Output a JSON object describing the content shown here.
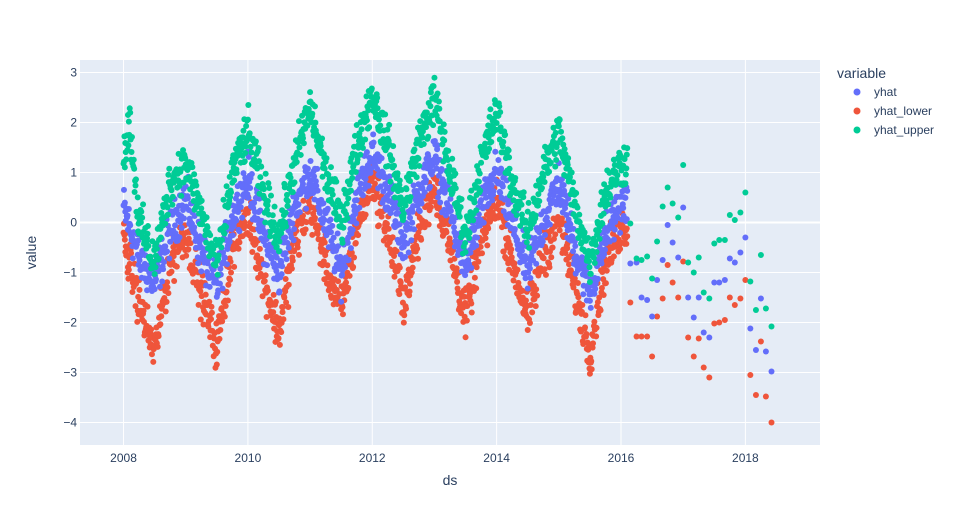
{
  "chart_data": {
    "type": "scatter",
    "xlabel": "ds",
    "ylabel": "value",
    "xlim": [
      2007.3,
      2019.2
    ],
    "ylim": [
      -4.45,
      3.25
    ],
    "x_ticks": [
      2008,
      2010,
      2012,
      2014,
      2016,
      2018
    ],
    "y_ticks": [
      -4,
      -3,
      -2,
      -1,
      0,
      1,
      2,
      3
    ],
    "legend_title": "variable",
    "legend_position": "right",
    "grid": true,
    "plot_background": "#e5ecf6",
    "series": [
      {
        "name": "yhat",
        "color": "#636efa",
        "daily_range": [
          2008.0,
          2016.1
        ],
        "points": [
          [
            2008.0,
            0.3
          ],
          [
            2008.25,
            -0.7
          ],
          [
            2008.5,
            -1.2
          ],
          [
            2008.75,
            -0.2
          ],
          [
            2009.0,
            0.5
          ],
          [
            2009.25,
            -0.6
          ],
          [
            2009.5,
            -1.3
          ],
          [
            2009.75,
            0.1
          ],
          [
            2010.0,
            0.9
          ],
          [
            2010.25,
            -0.3
          ],
          [
            2010.5,
            -1.0
          ],
          [
            2010.75,
            0.3
          ],
          [
            2011.0,
            1.0
          ],
          [
            2011.25,
            0.0
          ],
          [
            2011.5,
            -1.0
          ],
          [
            2011.75,
            0.5
          ],
          [
            2012.0,
            1.4
          ],
          [
            2012.25,
            0.6
          ],
          [
            2012.5,
            -0.4
          ],
          [
            2012.75,
            0.6
          ],
          [
            2013.0,
            1.3
          ],
          [
            2013.25,
            0.2
          ],
          [
            2013.5,
            -0.9
          ],
          [
            2013.75,
            0.2
          ],
          [
            2014.0,
            1.0
          ],
          [
            2014.25,
            0.0
          ],
          [
            2014.5,
            -1.0
          ],
          [
            2014.75,
            0.0
          ],
          [
            2015.0,
            0.8
          ],
          [
            2015.25,
            -0.5
          ],
          [
            2015.5,
            -1.4
          ],
          [
            2015.75,
            -0.3
          ],
          [
            2016.0,
            0.4
          ]
        ],
        "monthly_points": [
          [
            2016.15,
            -0.82
          ],
          [
            2016.25,
            -0.8
          ],
          [
            2016.33,
            -1.5
          ],
          [
            2016.42,
            -1.55
          ],
          [
            2016.5,
            -1.88
          ],
          [
            2016.58,
            -1.15
          ],
          [
            2016.67,
            -0.75
          ],
          [
            2016.75,
            -0.05
          ],
          [
            2016.83,
            -0.4
          ],
          [
            2016.92,
            -0.7
          ],
          [
            2017.0,
            0.3
          ],
          [
            2017.08,
            -1.5
          ],
          [
            2017.17,
            -1.9
          ],
          [
            2017.25,
            -1.5
          ],
          [
            2017.33,
            -2.2
          ],
          [
            2017.42,
            -2.3
          ],
          [
            2017.5,
            -1.2
          ],
          [
            2017.58,
            -1.2
          ],
          [
            2017.67,
            -1.15
          ],
          [
            2017.75,
            -0.72
          ],
          [
            2017.83,
            -0.8
          ],
          [
            2017.92,
            -0.6
          ],
          [
            2018.0,
            -0.3
          ],
          [
            2018.08,
            -2.12
          ],
          [
            2018.17,
            -2.55
          ],
          [
            2018.25,
            -1.52
          ],
          [
            2018.33,
            -2.58
          ],
          [
            2018.42,
            -2.98
          ]
        ]
      },
      {
        "name": "yhat_lower",
        "color": "#ef553b",
        "daily_range": [
          2008.0,
          2016.1
        ],
        "points": [
          [
            2008.0,
            -0.3
          ],
          [
            2008.25,
            -1.6
          ],
          [
            2008.5,
            -2.6
          ],
          [
            2008.75,
            -0.8
          ],
          [
            2009.0,
            -0.2
          ],
          [
            2009.25,
            -1.4
          ],
          [
            2009.5,
            -2.5
          ],
          [
            2009.75,
            -0.5
          ],
          [
            2010.0,
            0.2
          ],
          [
            2010.25,
            -1.1
          ],
          [
            2010.5,
            -2.2
          ],
          [
            2010.75,
            -0.4
          ],
          [
            2011.0,
            0.4
          ],
          [
            2011.25,
            -0.8
          ],
          [
            2011.5,
            -1.8
          ],
          [
            2011.75,
            -0.1
          ],
          [
            2012.0,
            0.9
          ],
          [
            2012.25,
            -0.2
          ],
          [
            2012.5,
            -1.6
          ],
          [
            2012.75,
            -0.2
          ],
          [
            2013.0,
            0.8
          ],
          [
            2013.25,
            -0.5
          ],
          [
            2013.5,
            -1.9
          ],
          [
            2013.75,
            -0.4
          ],
          [
            2014.0,
            0.5
          ],
          [
            2014.25,
            -0.8
          ],
          [
            2014.5,
            -1.9
          ],
          [
            2014.75,
            -0.7
          ],
          [
            2015.0,
            0.1
          ],
          [
            2015.25,
            -1.3
          ],
          [
            2015.5,
            -2.6
          ],
          [
            2015.75,
            -0.8
          ],
          [
            2016.0,
            -0.1
          ]
        ],
        "monthly_points": [
          [
            2016.15,
            -1.6
          ],
          [
            2016.25,
            -2.28
          ],
          [
            2016.33,
            -2.28
          ],
          [
            2016.42,
            -2.28
          ],
          [
            2016.5,
            -2.68
          ],
          [
            2016.58,
            -1.88
          ],
          [
            2016.67,
            -1.52
          ],
          [
            2016.75,
            -0.85
          ],
          [
            2016.83,
            -1.2
          ],
          [
            2016.92,
            -1.5
          ],
          [
            2017.0,
            -0.78
          ],
          [
            2017.08,
            -2.3
          ],
          [
            2017.17,
            -2.68
          ],
          [
            2017.25,
            -2.32
          ],
          [
            2017.33,
            -2.9
          ],
          [
            2017.42,
            -3.1
          ],
          [
            2017.5,
            -2.02
          ],
          [
            2017.58,
            -2.0
          ],
          [
            2017.67,
            -1.95
          ],
          [
            2017.75,
            -1.5
          ],
          [
            2017.83,
            -1.65
          ],
          [
            2017.92,
            -1.52
          ],
          [
            2018.0,
            -1.15
          ],
          [
            2018.08,
            -3.05
          ],
          [
            2018.17,
            -3.45
          ],
          [
            2018.25,
            -2.38
          ],
          [
            2018.33,
            -3.48
          ],
          [
            2018.42,
            -4.0
          ]
        ]
      },
      {
        "name": "yhat_upper",
        "color": "#00cc96",
        "daily_range": [
          2008.0,
          2016.1
        ],
        "points": [
          [
            2008.0,
            1.3
          ],
          [
            2008.1,
            2.0
          ],
          [
            2008.25,
            0.0
          ],
          [
            2008.5,
            -0.8
          ],
          [
            2008.75,
            0.8
          ],
          [
            2009.0,
            1.2
          ],
          [
            2009.25,
            0.2
          ],
          [
            2009.5,
            -0.9
          ],
          [
            2009.75,
            1.0
          ],
          [
            2010.0,
            1.8
          ],
          [
            2010.25,
            0.6
          ],
          [
            2010.5,
            -0.3
          ],
          [
            2010.75,
            1.2
          ],
          [
            2011.0,
            2.3
          ],
          [
            2011.25,
            1.0
          ],
          [
            2011.5,
            0.0
          ],
          [
            2011.75,
            1.5
          ],
          [
            2012.0,
            2.6
          ],
          [
            2012.25,
            1.5
          ],
          [
            2012.5,
            0.3
          ],
          [
            2012.75,
            1.6
          ],
          [
            2013.0,
            2.5
          ],
          [
            2013.25,
            1.0
          ],
          [
            2013.5,
            -0.3
          ],
          [
            2013.75,
            1.2
          ],
          [
            2014.0,
            2.2
          ],
          [
            2014.25,
            0.8
          ],
          [
            2014.5,
            -0.2
          ],
          [
            2014.75,
            1.0
          ],
          [
            2015.0,
            1.8
          ],
          [
            2015.25,
            0.4
          ],
          [
            2015.5,
            -0.8
          ],
          [
            2015.75,
            0.6
          ],
          [
            2016.0,
            1.2
          ]
        ],
        "monthly_points": [
          [
            2016.15,
            -0.02
          ],
          [
            2016.25,
            -0.72
          ],
          [
            2016.33,
            -0.75
          ],
          [
            2016.42,
            -0.68
          ],
          [
            2016.5,
            -1.12
          ],
          [
            2016.58,
            -0.38
          ],
          [
            2016.67,
            0.32
          ],
          [
            2016.75,
            0.7
          ],
          [
            2016.83,
            0.38
          ],
          [
            2016.92,
            0.1
          ],
          [
            2017.0,
            1.15
          ],
          [
            2017.08,
            -0.8
          ],
          [
            2017.17,
            -1.0
          ],
          [
            2017.25,
            -0.7
          ],
          [
            2017.33,
            -1.4
          ],
          [
            2017.42,
            -1.52
          ],
          [
            2017.5,
            -0.42
          ],
          [
            2017.58,
            -0.35
          ],
          [
            2017.67,
            -0.35
          ],
          [
            2017.75,
            0.15
          ],
          [
            2017.83,
            0.05
          ],
          [
            2017.92,
            0.2
          ],
          [
            2018.0,
            0.6
          ],
          [
            2018.08,
            -1.18
          ],
          [
            2018.17,
            -1.75
          ],
          [
            2018.25,
            -0.65
          ],
          [
            2018.33,
            -1.72
          ],
          [
            2018.42,
            -2.08
          ]
        ]
      }
    ]
  }
}
